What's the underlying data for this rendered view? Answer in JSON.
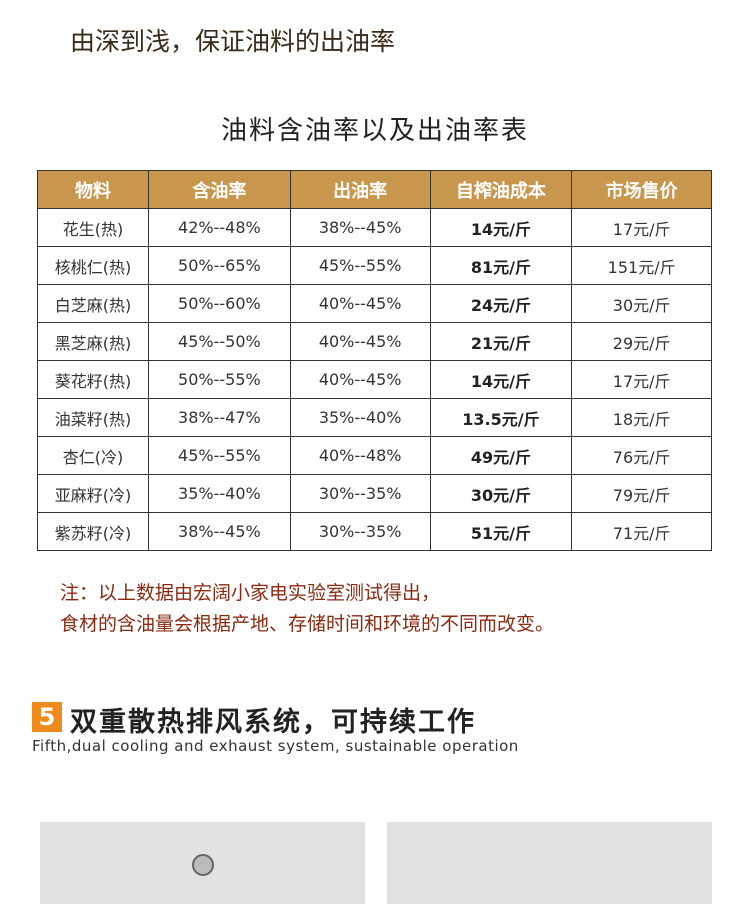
{
  "intro": "由深到浅，保证油料的出油率",
  "table": {
    "title": "油料含油率以及出油率表",
    "header": [
      "物料",
      "含油率",
      "出油率",
      "自榨油成本",
      "市场售价"
    ],
    "rows": [
      [
        "花生(热)",
        "42%--48%",
        "38%--45%",
        "14元/斤",
        "17元/斤"
      ],
      [
        "核桃仁(热)",
        "50%--65%",
        "45%--55%",
        "81元/斤",
        "151元/斤"
      ],
      [
        "白芝麻(热)",
        "50%--60%",
        "40%--45%",
        "24元/斤",
        "30元/斤"
      ],
      [
        "黑芝麻(热)",
        "45%--50%",
        "40%--45%",
        "21元/斤",
        "29元/斤"
      ],
      [
        "葵花籽(热)",
        "50%--55%",
        "40%--45%",
        "14元/斤",
        "17元/斤"
      ],
      [
        "油菜籽(热)",
        "38%--47%",
        "35%--40%",
        "13.5元/斤",
        "18元/斤"
      ],
      [
        "杏仁(冷)",
        "45%--55%",
        "40%--48%",
        "49元/斤",
        "76元/斤"
      ],
      [
        "亚麻籽(冷)",
        "35%--40%",
        "30%--35%",
        "30元/斤",
        "79元/斤"
      ],
      [
        "紫苏籽(冷)",
        "38%--45%",
        "30%--35%",
        "51元/斤",
        "71元/斤"
      ]
    ]
  },
  "notes": [
    "注：以上数据由宏阔小家电实验室测试得出，",
    "食材的含油量会根据产地、存储时间和环境的不同而改变。"
  ],
  "section": {
    "number": "5",
    "title": "双重散热排风系统，可持续工作",
    "subtitle": "Fifth,dual cooling and exhaust system, sustainable operation"
  }
}
